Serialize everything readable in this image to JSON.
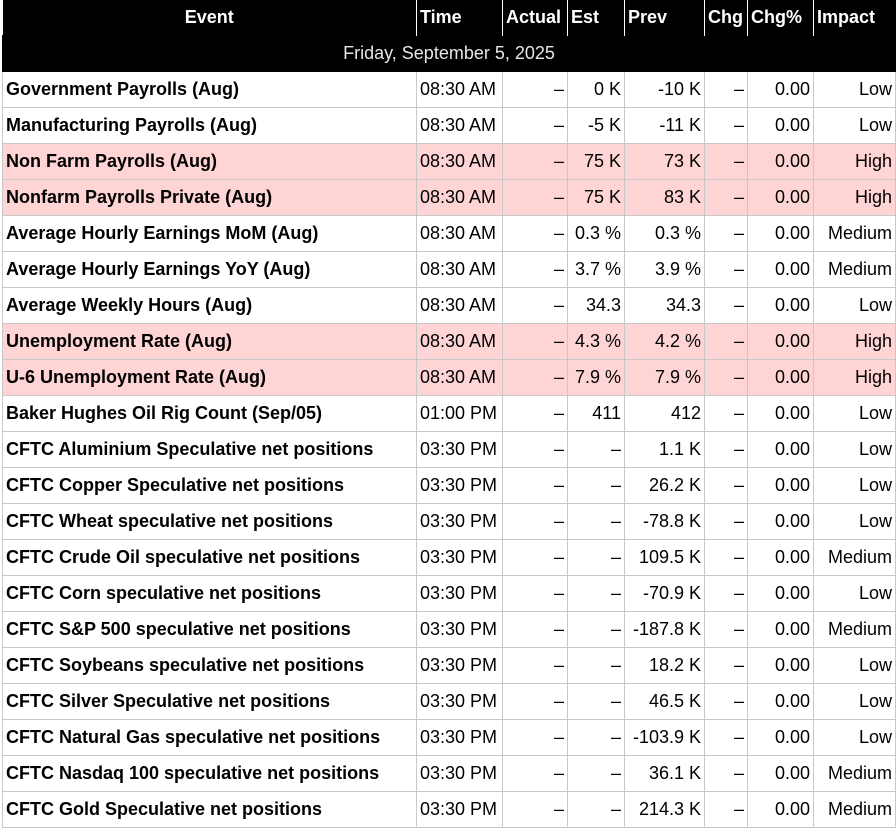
{
  "headers": {
    "event": "Event",
    "time": "Time",
    "actual": "Actual",
    "est": "Est",
    "prev": "Prev",
    "chg": "Chg",
    "chg_pct": "Chg%",
    "impact": "Impact"
  },
  "date_label": "Friday, September 5, 2025",
  "colors": {
    "header_bg": "#000000",
    "header_text": "#ffffff",
    "high_impact_row": "#ffd4d4",
    "row_bg": "#ffffff",
    "grid": "#c8c8c8"
  },
  "rows": [
    {
      "event": "Government Payrolls (Aug)",
      "time": "08:30 AM",
      "actual": "–",
      "est": "0 K",
      "prev": "-10 K",
      "chg": "–",
      "chg_pct": "0.00",
      "impact": "Low"
    },
    {
      "event": "Manufacturing Payrolls (Aug)",
      "time": "08:30 AM",
      "actual": "–",
      "est": "-5 K",
      "prev": "-11 K",
      "chg": "–",
      "chg_pct": "0.00",
      "impact": "Low"
    },
    {
      "event": "Non Farm Payrolls (Aug)",
      "time": "08:30 AM",
      "actual": "–",
      "est": "75 K",
      "prev": "73 K",
      "chg": "–",
      "chg_pct": "0.00",
      "impact": "High"
    },
    {
      "event": "Nonfarm Payrolls Private (Aug)",
      "time": "08:30 AM",
      "actual": "–",
      "est": "75 K",
      "prev": "83 K",
      "chg": "–",
      "chg_pct": "0.00",
      "impact": "High"
    },
    {
      "event": "Average Hourly Earnings MoM (Aug)",
      "time": "08:30 AM",
      "actual": "–",
      "est": "0.3 %",
      "prev": "0.3 %",
      "chg": "–",
      "chg_pct": "0.00",
      "impact": "Medium"
    },
    {
      "event": "Average Hourly Earnings YoY (Aug)",
      "time": "08:30 AM",
      "actual": "–",
      "est": "3.7 %",
      "prev": "3.9 %",
      "chg": "–",
      "chg_pct": "0.00",
      "impact": "Medium"
    },
    {
      "event": "Average Weekly Hours (Aug)",
      "time": "08:30 AM",
      "actual": "–",
      "est": "34.3",
      "prev": "34.3",
      "chg": "–",
      "chg_pct": "0.00",
      "impact": "Low"
    },
    {
      "event": "Unemployment Rate (Aug)",
      "time": "08:30 AM",
      "actual": "–",
      "est": "4.3 %",
      "prev": "4.2 %",
      "chg": "–",
      "chg_pct": "0.00",
      "impact": "High"
    },
    {
      "event": "U-6 Unemployment Rate (Aug)",
      "time": "08:30 AM",
      "actual": "–",
      "est": "7.9 %",
      "prev": "7.9 %",
      "chg": "–",
      "chg_pct": "0.00",
      "impact": "High"
    },
    {
      "event": "Baker Hughes Oil Rig Count (Sep/05)",
      "time": "01:00 PM",
      "actual": "–",
      "est": "411",
      "prev": "412",
      "chg": "–",
      "chg_pct": "0.00",
      "impact": "Low"
    },
    {
      "event": "CFTC Aluminium Speculative net positions",
      "time": "03:30 PM",
      "actual": "–",
      "est": "–",
      "prev": "1.1 K",
      "chg": "–",
      "chg_pct": "0.00",
      "impact": "Low"
    },
    {
      "event": "CFTC Copper Speculative net positions",
      "time": "03:30 PM",
      "actual": "–",
      "est": "–",
      "prev": "26.2 K",
      "chg": "–",
      "chg_pct": "0.00",
      "impact": "Low"
    },
    {
      "event": "CFTC Wheat speculative net positions",
      "time": "03:30 PM",
      "actual": "–",
      "est": "–",
      "prev": "-78.8 K",
      "chg": "–",
      "chg_pct": "0.00",
      "impact": "Low"
    },
    {
      "event": "CFTC Crude Oil speculative net positions",
      "time": "03:30 PM",
      "actual": "–",
      "est": "–",
      "prev": "109.5 K",
      "chg": "–",
      "chg_pct": "0.00",
      "impact": "Medium"
    },
    {
      "event": "CFTC Corn speculative net positions",
      "time": "03:30 PM",
      "actual": "–",
      "est": "–",
      "prev": "-70.9 K",
      "chg": "–",
      "chg_pct": "0.00",
      "impact": "Low"
    },
    {
      "event": "CFTC S&P 500 speculative net positions",
      "time": "03:30 PM",
      "actual": "–",
      "est": "–",
      "prev": "-187.8 K",
      "chg": "–",
      "chg_pct": "0.00",
      "impact": "Medium"
    },
    {
      "event": "CFTC Soybeans speculative net positions",
      "time": "03:30 PM",
      "actual": "–",
      "est": "–",
      "prev": "18.2 K",
      "chg": "–",
      "chg_pct": "0.00",
      "impact": "Low"
    },
    {
      "event": "CFTC Silver Speculative net positions",
      "time": "03:30 PM",
      "actual": "–",
      "est": "–",
      "prev": "46.5 K",
      "chg": "–",
      "chg_pct": "0.00",
      "impact": "Low"
    },
    {
      "event": "CFTC Natural Gas speculative net positions",
      "time": "03:30 PM",
      "actual": "–",
      "est": "–",
      "prev": "-103.9 K",
      "chg": "–",
      "chg_pct": "0.00",
      "impact": "Low"
    },
    {
      "event": "CFTC Nasdaq 100 speculative net positions",
      "time": "03:30 PM",
      "actual": "–",
      "est": "–",
      "prev": "36.1 K",
      "chg": "–",
      "chg_pct": "0.00",
      "impact": "Medium"
    },
    {
      "event": "CFTC Gold Speculative net positions",
      "time": "03:30 PM",
      "actual": "–",
      "est": "–",
      "prev": "214.3 K",
      "chg": "–",
      "chg_pct": "0.00",
      "impact": "Medium"
    }
  ]
}
